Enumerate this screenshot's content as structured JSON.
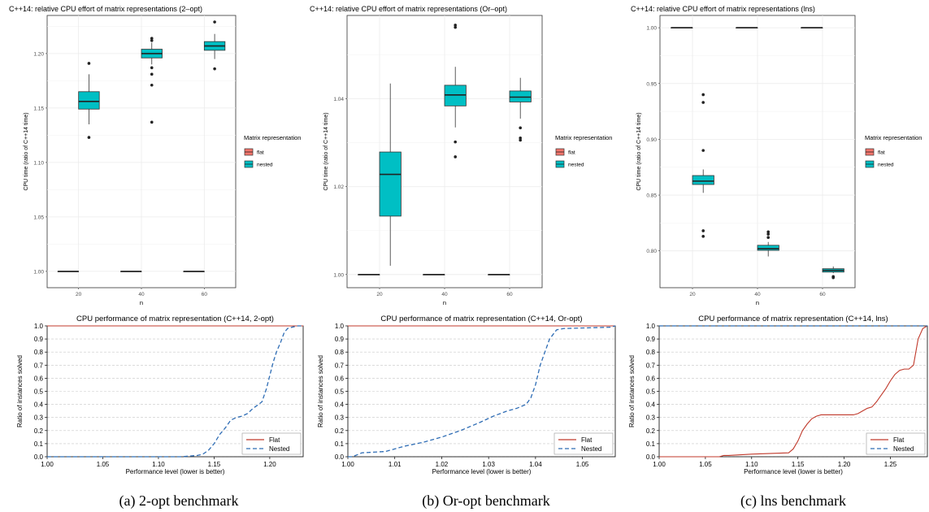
{
  "captions": [
    "(a) 2-opt benchmark",
    "(b) Or-opt benchmark",
    "(c) lns benchmark"
  ],
  "colors": {
    "flat": "#F8766D",
    "nested": "#00BFC4",
    "flat_line": "#c0392b",
    "nested_line": "#2f6db5",
    "panel_bg": "#ffffff",
    "grid": "#ebebeb"
  },
  "chart_data": [
    {
      "type": "box",
      "title": "C++14: relative CPU effort of matrix representations (2–opt)",
      "xlabel": "n",
      "ylabel": "CPU time (ratio of C++14 time)",
      "categories": [
        "20",
        "40",
        "60"
      ],
      "ylim": [
        0.985,
        1.235
      ],
      "yticks": [
        1.0,
        1.05,
        1.1,
        1.15,
        1.2
      ],
      "ytick_labels": [
        "1.00",
        "1.05",
        "1.10",
        "1.15",
        "1.20"
      ],
      "legend_title": "Matrix representation",
      "legend_entries": [
        "flat",
        "nested"
      ],
      "grid": true,
      "series": [
        {
          "name": "flat",
          "boxes": [
            {
              "min": 1.0,
              "q1": 1.0,
              "median": 1.0,
              "q3": 1.0,
              "max": 1.0,
              "outliers": []
            },
            {
              "min": 1.0,
              "q1": 1.0,
              "median": 1.0,
              "q3": 1.0,
              "max": 1.0,
              "outliers": []
            },
            {
              "min": 1.0,
              "q1": 1.0,
              "median": 1.0,
              "q3": 1.0,
              "max": 1.0,
              "outliers": []
            }
          ]
        },
        {
          "name": "nested",
          "boxes": [
            {
              "min": 1.135,
              "q1": 1.149,
              "median": 1.156,
              "q3": 1.165,
              "max": 1.181,
              "outliers": [
                1.191,
                1.123
              ]
            },
            {
              "min": 1.19,
              "q1": 1.196,
              "median": 1.2,
              "q3": 1.204,
              "max": 1.21,
              "outliers": [
                1.214,
                1.212,
                1.187,
                1.181,
                1.171,
                1.137
              ]
            },
            {
              "min": 1.195,
              "q1": 1.203,
              "median": 1.207,
              "q3": 1.211,
              "max": 1.218,
              "outliers": [
                1.229,
                1.186
              ]
            }
          ]
        }
      ]
    },
    {
      "type": "box",
      "title": "C++14: relative CPU effort of matrix representations (Or–opt)",
      "xlabel": "n",
      "ylabel": "CPU time (ratio of C++14 time)",
      "categories": [
        "20",
        "40",
        "60"
      ],
      "ylim": [
        0.997,
        1.059
      ],
      "yticks": [
        1.0,
        1.02,
        1.04
      ],
      "ytick_labels": [
        "1.00",
        "1.02",
        "1.04"
      ],
      "legend_title": "Matrix representation",
      "legend_entries": [
        "flat",
        "nested"
      ],
      "grid": true,
      "series": [
        {
          "name": "flat",
          "boxes": [
            {
              "min": 1.0,
              "q1": 1.0,
              "median": 1.0,
              "q3": 1.0,
              "max": 1.0,
              "outliers": []
            },
            {
              "min": 1.0,
              "q1": 1.0,
              "median": 1.0,
              "q3": 1.0,
              "max": 1.0,
              "outliers": []
            },
            {
              "min": 1.0,
              "q1": 1.0,
              "median": 1.0,
              "q3": 1.0,
              "max": 1.0,
              "outliers": []
            }
          ]
        },
        {
          "name": "nested",
          "boxes": [
            {
              "min": 1.002,
              "q1": 1.0133,
              "median": 1.0228,
              "q3": 1.0279,
              "max": 1.0435,
              "outliers": []
            },
            {
              "min": 1.0335,
              "q1": 1.0384,
              "median": 1.0409,
              "q3": 1.0431,
              "max": 1.0473,
              "outliers": [
                1.0568,
                1.0563,
                1.0302,
                1.0268
              ]
            },
            {
              "min": 1.0355,
              "q1": 1.0393,
              "median": 1.0404,
              "q3": 1.0418,
              "max": 1.0448,
              "outliers": [
                1.0334,
                1.0311,
                1.0306
              ]
            }
          ]
        }
      ]
    },
    {
      "type": "box",
      "title": "C++14: relative CPU effort of matrix representations (lns)",
      "xlabel": "n",
      "ylabel": "CPU time (ratio of C++14 time)",
      "categories": [
        "20",
        "40",
        "60"
      ],
      "ylim": [
        0.767,
        1.011
      ],
      "yticks": [
        0.8,
        0.85,
        0.9,
        0.95,
        1.0
      ],
      "ytick_labels": [
        "0.80",
        "0.85",
        "0.90",
        "0.95",
        "1.00"
      ],
      "legend_title": "Matrix representation",
      "legend_entries": [
        "flat",
        "nested"
      ],
      "grid": true,
      "series": [
        {
          "name": "flat",
          "boxes": [
            {
              "min": 1.0,
              "q1": 1.0,
              "median": 1.0,
              "q3": 1.0,
              "max": 1.0,
              "outliers": []
            },
            {
              "min": 1.0,
              "q1": 1.0,
              "median": 1.0,
              "q3": 1.0,
              "max": 1.0,
              "outliers": []
            },
            {
              "min": 1.0,
              "q1": 1.0,
              "median": 1.0,
              "q3": 1.0,
              "max": 1.0,
              "outliers": []
            }
          ]
        },
        {
          "name": "nested",
          "boxes": [
            {
              "min": 0.852,
              "q1": 0.8595,
              "median": 0.8625,
              "q3": 0.8675,
              "max": 0.873,
              "outliers": [
                0.94,
                0.933,
                0.89,
                0.818,
                0.813
              ]
            },
            {
              "min": 0.795,
              "q1": 0.8005,
              "median": 0.802,
              "q3": 0.805,
              "max": 0.808,
              "outliers": [
                0.817,
                0.815,
                0.812
              ]
            },
            {
              "min": 0.78,
              "q1": 0.781,
              "median": 0.7825,
              "q3": 0.784,
              "max": 0.786,
              "outliers": [
                0.777,
                0.776
              ]
            }
          ]
        }
      ]
    },
    {
      "type": "line",
      "title": "CPU performance of matrix representation (C++14, 2-opt)",
      "xlabel": "Performance level (lower is better)",
      "ylabel": "Ratio of instances solved",
      "xlim": [
        1.0,
        1.23
      ],
      "ylim": [
        0.0,
        1.0
      ],
      "xticks": [
        1.0,
        1.05,
        1.1,
        1.15,
        1.2
      ],
      "xtick_labels": [
        "1.00",
        "1.05",
        "1.10",
        "1.15",
        "1.20"
      ],
      "yticks": [
        0.0,
        0.1,
        0.2,
        0.3,
        0.4,
        0.5,
        0.6,
        0.7,
        0.8,
        0.9,
        1.0
      ],
      "ytick_labels": [
        "0.0",
        "0.1",
        "0.2",
        "0.3",
        "0.4",
        "0.5",
        "0.6",
        "0.7",
        "0.8",
        "0.9",
        "1.0"
      ],
      "legend_position": "bottom-right",
      "grid": true,
      "series": [
        {
          "name": "Flat",
          "style": "solid",
          "x": [
            1.0,
            1.23
          ],
          "y": [
            1.0,
            1.0
          ]
        },
        {
          "name": "Nested",
          "style": "dashed",
          "x": [
            1.12,
            1.135,
            1.14,
            1.145,
            1.15,
            1.155,
            1.16,
            1.165,
            1.17,
            1.175,
            1.18,
            1.185,
            1.19,
            1.193,
            1.197,
            1.2,
            1.203,
            1.206,
            1.21,
            1.213,
            1.216,
            1.22,
            1.225,
            1.23
          ],
          "y": [
            0.0,
            0.01,
            0.02,
            0.05,
            0.1,
            0.17,
            0.22,
            0.28,
            0.3,
            0.31,
            0.33,
            0.37,
            0.4,
            0.42,
            0.52,
            0.62,
            0.72,
            0.8,
            0.88,
            0.95,
            0.98,
            0.99,
            1.0,
            1.0
          ]
        }
      ]
    },
    {
      "type": "line",
      "title": "CPU performance of matrix representation (C++14, Or-opt)",
      "xlabel": "Performance level (lower is better)",
      "ylabel": "Ratio of instances solved",
      "xlim": [
        1.0,
        1.057
      ],
      "ylim": [
        0.0,
        1.0
      ],
      "xticks": [
        1.0,
        1.01,
        1.02,
        1.03,
        1.04,
        1.05
      ],
      "xtick_labels": [
        "1.00",
        "1.01",
        "1.02",
        "1.03",
        "1.04",
        "1.05"
      ],
      "yticks": [
        0.0,
        0.1,
        0.2,
        0.3,
        0.4,
        0.5,
        0.6,
        0.7,
        0.8,
        0.9,
        1.0
      ],
      "ytick_labels": [
        "0.0",
        "0.1",
        "0.2",
        "0.3",
        "0.4",
        "0.5",
        "0.6",
        "0.7",
        "0.8",
        "0.9",
        "1.0"
      ],
      "legend_position": "bottom-right",
      "grid": true,
      "series": [
        {
          "name": "Flat",
          "style": "solid",
          "x": [
            1.0,
            1.057
          ],
          "y": [
            1.0,
            1.0
          ]
        },
        {
          "name": "Nested",
          "style": "dashed",
          "x": [
            1.001,
            1.003,
            1.008,
            1.012,
            1.016,
            1.02,
            1.024,
            1.028,
            1.031,
            1.034,
            1.036,
            1.038,
            1.039,
            1.04,
            1.041,
            1.042,
            1.043,
            1.0445,
            1.046,
            1.056,
            1.057
          ],
          "y": [
            0.0,
            0.03,
            0.04,
            0.08,
            0.11,
            0.15,
            0.2,
            0.26,
            0.31,
            0.35,
            0.37,
            0.4,
            0.45,
            0.55,
            0.7,
            0.8,
            0.9,
            0.97,
            0.98,
            0.99,
            1.0
          ]
        }
      ]
    },
    {
      "type": "line",
      "title": "CPU performance of matrix representation (C++14, lns)",
      "xlabel": "Performance level (lower is better)",
      "ylabel": "Ratio of instances solved",
      "xlim": [
        1.0,
        1.29
      ],
      "ylim": [
        0.0,
        1.0
      ],
      "xticks": [
        1.0,
        1.05,
        1.1,
        1.15,
        1.2,
        1.25
      ],
      "xtick_labels": [
        "1.00",
        "1.05",
        "1.10",
        "1.15",
        "1.20",
        "1.25"
      ],
      "yticks": [
        0.0,
        0.1,
        0.2,
        0.3,
        0.4,
        0.5,
        0.6,
        0.7,
        0.8,
        0.9,
        1.0
      ],
      "ytick_labels": [
        "0.0",
        "0.1",
        "0.2",
        "0.3",
        "0.4",
        "0.5",
        "0.6",
        "0.7",
        "0.8",
        "0.9",
        "1.0"
      ],
      "legend_position": "bottom-right",
      "grid": true,
      "series": [
        {
          "name": "Flat",
          "style": "solid",
          "x": [
            1.065,
            1.07,
            1.075,
            1.1,
            1.14,
            1.145,
            1.15,
            1.155,
            1.16,
            1.165,
            1.17,
            1.175,
            1.2,
            1.21,
            1.215,
            1.22,
            1.225,
            1.23,
            1.235,
            1.24,
            1.245,
            1.25,
            1.255,
            1.26,
            1.265,
            1.27,
            1.275,
            1.28,
            1.285,
            1.29
          ],
          "y": [
            0.0,
            0.01,
            0.01,
            0.02,
            0.03,
            0.06,
            0.12,
            0.2,
            0.25,
            0.29,
            0.31,
            0.32,
            0.32,
            0.32,
            0.33,
            0.35,
            0.37,
            0.38,
            0.42,
            0.47,
            0.52,
            0.58,
            0.63,
            0.66,
            0.67,
            0.67,
            0.7,
            0.9,
            0.98,
            1.0
          ]
        },
        {
          "name": "Nested",
          "style": "dashed",
          "x": [
            1.0,
            1.29
          ],
          "y": [
            1.0,
            1.0
          ]
        }
      ]
    }
  ]
}
